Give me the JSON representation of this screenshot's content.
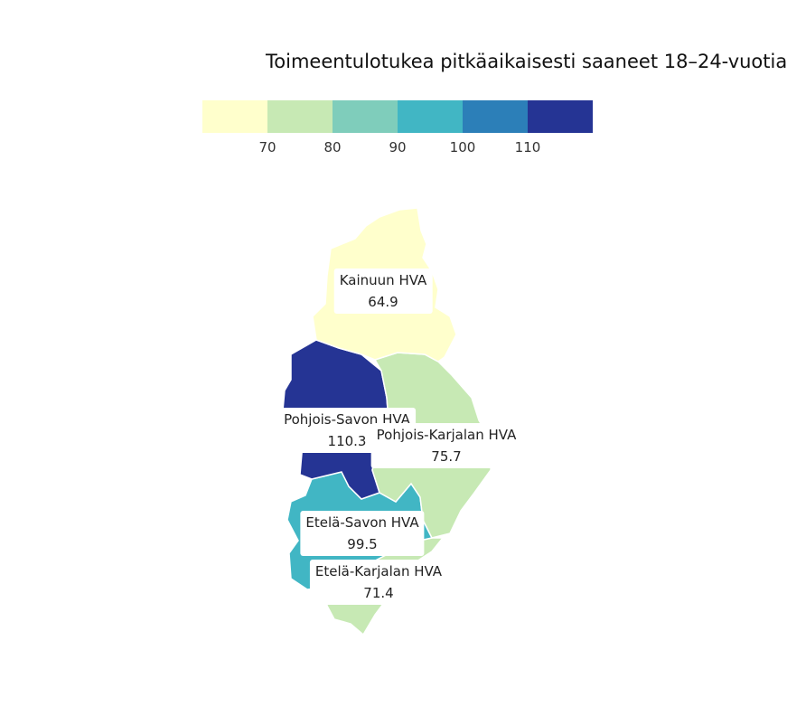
{
  "title": "Toimeentulotukea pitkäaikaisesti saaneet 18–24-vuotia",
  "legend": {
    "colors": [
      "#ffffcc",
      "#c7e9b4",
      "#7fcdbb",
      "#41b6c4",
      "#2c7fb8",
      "#253494"
    ],
    "ticks": [
      "70",
      "80",
      "90",
      "100",
      "110"
    ]
  },
  "chart_data": {
    "type": "choropleth",
    "title": "Toimeentulotukea pitkäaikaisesti saaneet 18–24-vuotia",
    "bins": [
      60,
      70,
      80,
      90,
      100,
      110,
      120
    ],
    "regions": [
      {
        "id": "kainuu",
        "name": "Kainuun HVA",
        "value": 64.9,
        "color": "#ffffcc"
      },
      {
        "id": "pohjois-savo",
        "name": "Pohjois-Savon HVA",
        "value": 110.3,
        "color": "#253494"
      },
      {
        "id": "pohjois-karjala",
        "name": "Pohjois-Karjalan HVA",
        "value": 75.7,
        "color": "#c7e9b4"
      },
      {
        "id": "etela-savo",
        "name": "Etelä-Savon HVA",
        "value": 99.5,
        "color": "#41b6c4"
      },
      {
        "id": "etela-karjala",
        "name": "Etelä-Karjalan HVA",
        "value": 71.4,
        "color": "#c7e9b4"
      }
    ]
  }
}
